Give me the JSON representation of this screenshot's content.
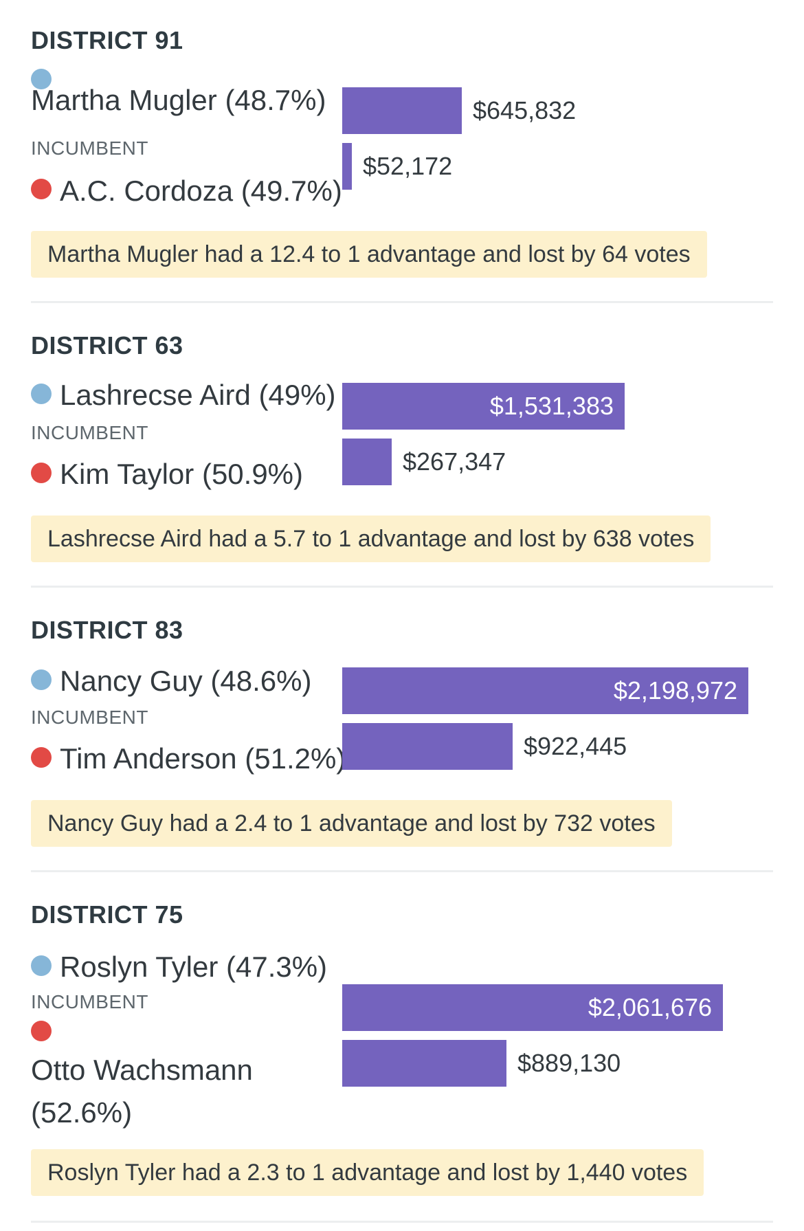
{
  "chart_data": {
    "type": "bar",
    "xlim": [
      0,
      2300000
    ],
    "districts": [
      {
        "title": "DISTRICT 91",
        "incumbent": {
          "name": "Martha Mugler",
          "pct": "(48.7%)",
          "tag": "INCUMBENT",
          "amount": 645832,
          "amount_label": "$645,832"
        },
        "challenger": {
          "name": "A.C. Cordoza",
          "pct": "(49.7%)",
          "amount": 52172,
          "amount_label": "$52,172"
        },
        "note": "Martha Mugler had a 12.4 to 1 advantage and lost by 64 votes"
      },
      {
        "title": "DISTRICT 63",
        "incumbent": {
          "name": "Lashrecse Aird",
          "pct": "(49%)",
          "tag": "INCUMBENT",
          "amount": 1531383,
          "amount_label": "$1,531,383"
        },
        "challenger": {
          "name": "Kim Taylor",
          "pct": "(50.9%)",
          "amount": 267347,
          "amount_label": "$267,347"
        },
        "note": "Lashrecse Aird had a 5.7 to 1 advantage and lost by 638 votes"
      },
      {
        "title": "DISTRICT 83",
        "incumbent": {
          "name": "Nancy Guy",
          "pct": "(48.6%)",
          "tag": "INCUMBENT",
          "amount": 2198972,
          "amount_label": "$2,198,972"
        },
        "challenger": {
          "name": "Tim Anderson",
          "pct": "(51.2%)",
          "amount": 922445,
          "amount_label": "$922,445"
        },
        "note": "Nancy Guy had a 2.4 to 1 advantage and lost by 732 votes"
      },
      {
        "title": "DISTRICT 75",
        "incumbent": {
          "name": "Roslyn Tyler",
          "pct": "(47.3%)",
          "tag": "INCUMBENT",
          "amount": 2061676,
          "amount_label": "$2,061,676"
        },
        "challenger": {
          "name": "Otto Wachsmann",
          "pct": "(52.6%)",
          "amount": 889130,
          "amount_label": "$889,130"
        },
        "note": "Roslyn Tyler had a 2.3 to 1 advantage and lost by 1,440 votes"
      }
    ]
  },
  "colors": {
    "incumbent_dot": "#86b6d8",
    "challenger_dot": "#e24a45",
    "bar": "#7463be",
    "note_bg": "#fdf1cd"
  }
}
